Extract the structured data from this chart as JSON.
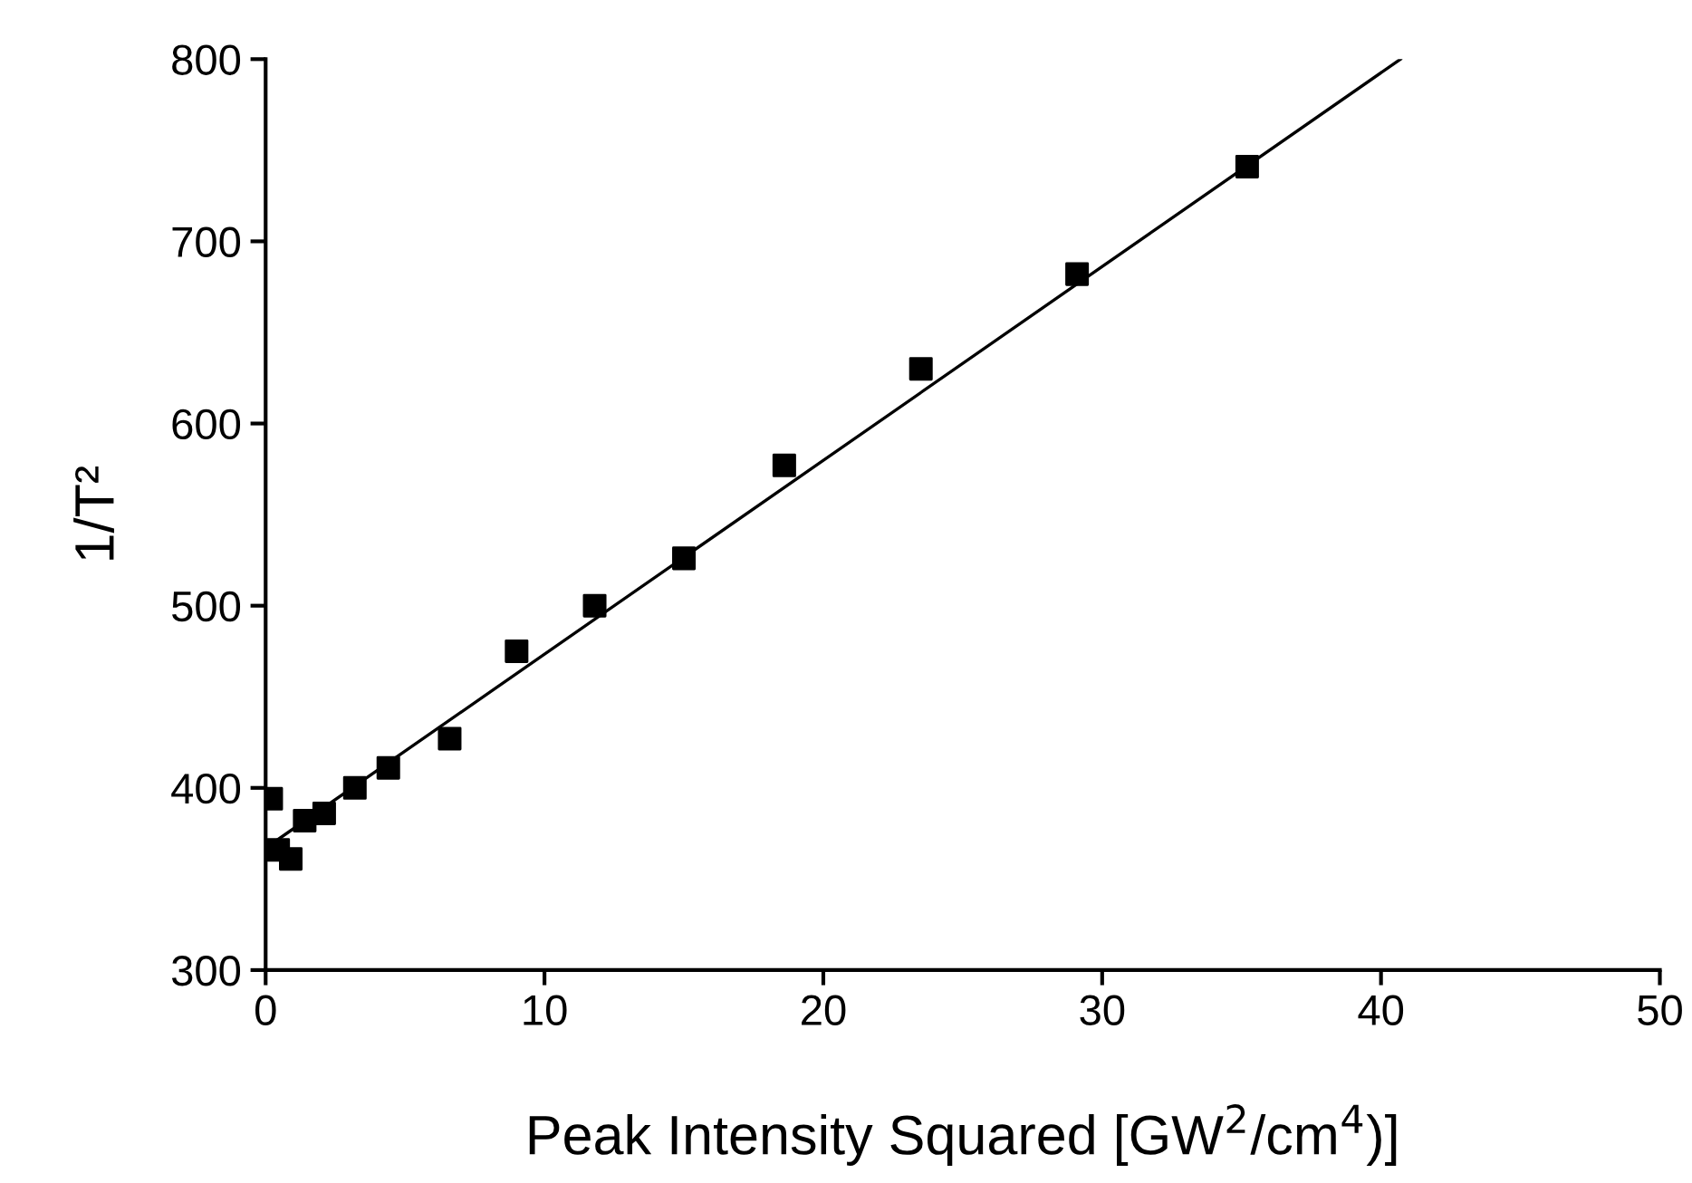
{
  "chart_data": {
    "type": "scatter",
    "xlabel": "Peak Intensity Squared [GW$^{2}$/cm$^{4}$)]",
    "ylabel": "1/T²",
    "xlim": [
      0,
      50
    ],
    "ylim": [
      300,
      800
    ],
    "xticks": [
      0,
      10,
      20,
      30,
      40,
      50
    ],
    "yticks": [
      300,
      400,
      500,
      600,
      700,
      800
    ],
    "grid": false,
    "legend": false,
    "series": [
      {
        "marker": "square",
        "color": "#000000",
        "x": [
          0.2,
          0.45,
          0.9,
          1.4,
          2.1,
          3.2,
          4.4,
          6.6,
          9.0,
          11.8,
          15.0,
          18.6,
          23.5,
          29.1,
          35.2
        ],
        "values": [
          394,
          366,
          361,
          382,
          386,
          400,
          411,
          427,
          475,
          500,
          526,
          577,
          630,
          682,
          741
        ]
      },
      {
        "type": "line",
        "marker": "none",
        "color": "#000000",
        "line_style": "solid",
        "x": [
          0,
          40.7
        ],
        "values": [
          367,
          800
        ]
      }
    ]
  }
}
